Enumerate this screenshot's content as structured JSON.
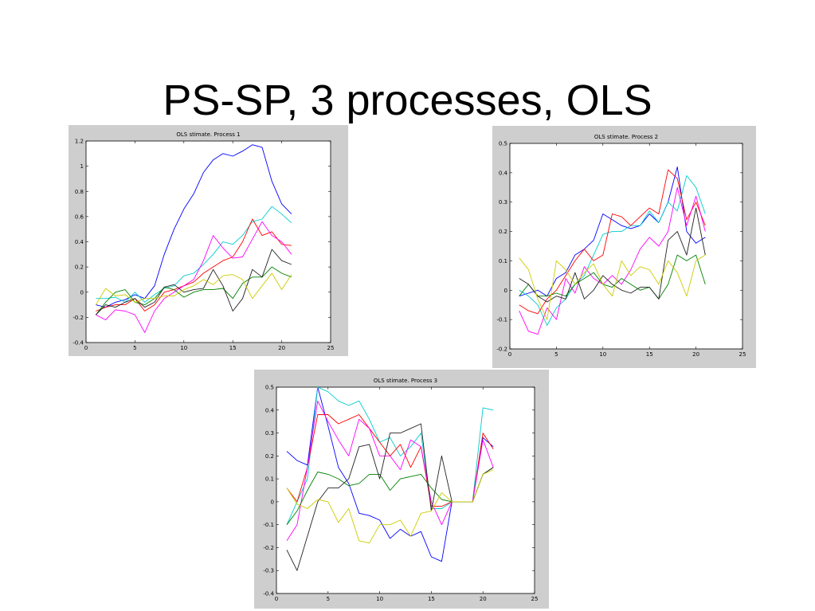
{
  "slide": {
    "title": "PS-SP, 3 processes, OLS"
  },
  "chart_data": [
    {
      "type": "line",
      "title": "OLS stimate. Process 1",
      "xlabel": "",
      "ylabel": "",
      "xlim": [
        0,
        25
      ],
      "ylim": [
        -0.4,
        1.2
      ],
      "xticks": [
        0,
        5,
        10,
        15,
        20,
        25
      ],
      "yticks": [
        -0.4,
        -0.2,
        0,
        0.2,
        0.4,
        0.6,
        0.8,
        1,
        1.2
      ],
      "grid": false,
      "x": [
        1,
        2,
        3,
        4,
        5,
        6,
        7,
        8,
        9,
        10,
        11,
        12,
        13,
        14,
        15,
        16,
        17,
        18,
        19,
        20,
        21
      ],
      "series": [
        {
          "color": "#0000ff",
          "values": [
            -0.1,
            -0.12,
            -0.08,
            -0.06,
            -0.02,
            -0.05,
            0.05,
            0.3,
            0.5,
            0.66,
            0.78,
            0.95,
            1.05,
            1.1,
            1.08,
            1.12,
            1.17,
            1.15,
            0.88,
            0.7,
            0.62
          ]
        },
        {
          "color": "#00cccc",
          "values": [
            -0.05,
            -0.05,
            -0.04,
            -0.08,
            0.0,
            -0.08,
            -0.02,
            0.03,
            0.05,
            0.13,
            0.15,
            0.22,
            0.3,
            0.4,
            0.38,
            0.45,
            0.56,
            0.58,
            0.68,
            0.62,
            0.55
          ]
        },
        {
          "color": "#ff0000",
          "values": [
            -0.15,
            -0.12,
            -0.1,
            -0.1,
            -0.05,
            -0.15,
            -0.1,
            0.0,
            0.02,
            0.05,
            0.08,
            0.15,
            0.2,
            0.25,
            0.28,
            0.4,
            0.58,
            0.45,
            0.48,
            0.38,
            0.37
          ]
        },
        {
          "color": "#ff00ff",
          "values": [
            -0.18,
            -0.22,
            -0.14,
            -0.15,
            -0.18,
            -0.32,
            -0.15,
            -0.05,
            0.0,
            0.05,
            0.1,
            0.25,
            0.45,
            0.35,
            0.27,
            0.28,
            0.42,
            0.56,
            0.45,
            0.4,
            0.3
          ]
        },
        {
          "color": "#008000",
          "values": [
            -0.18,
            -0.08,
            0.0,
            0.02,
            -0.08,
            -0.1,
            -0.05,
            0.04,
            0.02,
            -0.04,
            0.0,
            0.02,
            0.02,
            0.03,
            -0.05,
            0.07,
            0.12,
            0.12,
            0.2,
            0.15,
            0.12
          ]
        },
        {
          "color": "#222222",
          "values": [
            -0.18,
            -0.1,
            -0.12,
            -0.08,
            -0.05,
            -0.12,
            -0.08,
            0.04,
            0.06,
            0.0,
            0.02,
            0.03,
            0.18,
            0.05,
            -0.15,
            -0.05,
            0.18,
            0.12,
            0.34,
            0.25,
            0.22
          ]
        },
        {
          "color": "#cccc00",
          "values": [
            -0.1,
            0.03,
            -0.03,
            -0.02,
            -0.08,
            -0.05,
            -0.05,
            -0.03,
            -0.03,
            0.02,
            0.05,
            0.1,
            0.06,
            0.13,
            0.14,
            0.1,
            -0.05,
            0.05,
            0.15,
            0.02,
            0.14
          ]
        }
      ]
    },
    {
      "type": "line",
      "title": "OLS stimate. Process 2",
      "xlabel": "",
      "ylabel": "",
      "xlim": [
        0,
        25
      ],
      "ylim": [
        -0.2,
        0.5
      ],
      "xticks": [
        0,
        5,
        10,
        15,
        20,
        25
      ],
      "yticks": [
        -0.2,
        -0.1,
        0,
        0.1,
        0.2,
        0.3,
        0.4,
        0.5
      ],
      "grid": false,
      "x": [
        1,
        2,
        3,
        4,
        5,
        6,
        7,
        8,
        9,
        10,
        11,
        12,
        13,
        14,
        15,
        16,
        17,
        18,
        19,
        20,
        21
      ],
      "series": [
        {
          "color": "#0000ff",
          "values": [
            -0.02,
            -0.01,
            0.0,
            -0.02,
            0.04,
            0.06,
            0.12,
            0.14,
            0.17,
            0.26,
            0.24,
            0.22,
            0.21,
            0.22,
            0.26,
            0.23,
            0.3,
            0.42,
            0.2,
            0.16,
            0.18
          ]
        },
        {
          "color": "#00cccc",
          "values": [
            0.0,
            -0.02,
            -0.05,
            -0.12,
            -0.06,
            -0.03,
            0.02,
            0.05,
            0.12,
            0.19,
            0.2,
            0.2,
            0.22,
            0.22,
            0.27,
            0.23,
            0.3,
            0.27,
            0.39,
            0.35,
            0.26
          ]
        },
        {
          "color": "#ff0000",
          "values": [
            -0.05,
            -0.07,
            -0.08,
            -0.03,
            0.0,
            0.05,
            0.1,
            0.14,
            0.1,
            0.12,
            0.26,
            0.25,
            0.22,
            0.25,
            0.28,
            0.26,
            0.41,
            0.38,
            0.24,
            0.3,
            0.22
          ]
        },
        {
          "color": "#ff00ff",
          "values": [
            -0.07,
            -0.14,
            -0.15,
            -0.06,
            -0.1,
            0.04,
            -0.01,
            0.08,
            0.04,
            0.02,
            0.05,
            0.02,
            0.07,
            0.14,
            0.18,
            0.15,
            0.2,
            0.35,
            0.22,
            0.32,
            0.2
          ]
        },
        {
          "color": "#008000",
          "values": [
            -0.02,
            0.02,
            -0.02,
            -0.02,
            -0.01,
            -0.02,
            0.02,
            0.04,
            0.06,
            0.02,
            0.01,
            0.04,
            0.02,
            0.0,
            0.01,
            -0.03,
            0.02,
            0.12,
            0.1,
            0.12,
            0.02
          ]
        },
        {
          "color": "#222222",
          "values": [
            0.04,
            0.02,
            -0.02,
            -0.04,
            -0.02,
            -0.03,
            0.06,
            -0.03,
            0.0,
            0.05,
            0.02,
            0.0,
            -0.01,
            0.01,
            0.01,
            -0.03,
            0.17,
            0.2,
            0.12,
            0.28,
            0.12
          ]
        },
        {
          "color": "#cccc00",
          "values": [
            0.11,
            0.07,
            -0.03,
            -0.1,
            0.1,
            0.07,
            0.02,
            0.06,
            0.09,
            0.02,
            -0.02,
            0.1,
            0.05,
            0.08,
            0.07,
            0.02,
            0.1,
            0.06,
            -0.02,
            0.1,
            0.12
          ]
        }
      ]
    },
    {
      "type": "line",
      "title": "OLS stimate. Process 3",
      "xlabel": "",
      "ylabel": "",
      "xlim": [
        0,
        25
      ],
      "ylim": [
        -0.4,
        0.5
      ],
      "xticks": [
        0,
        5,
        10,
        15,
        20,
        25
      ],
      "yticks": [
        -0.4,
        -0.3,
        -0.2,
        -0.1,
        0,
        0.1,
        0.2,
        0.3,
        0.4,
        0.5
      ],
      "grid": false,
      "x": [
        1,
        2,
        3,
        4,
        5,
        6,
        7,
        8,
        9,
        10,
        11,
        12,
        13,
        14,
        15,
        16,
        17,
        18,
        19,
        20,
        21
      ],
      "series": [
        {
          "color": "#0000ff",
          "values": [
            0.22,
            0.18,
            0.16,
            0.5,
            0.33,
            0.15,
            0.08,
            -0.05,
            -0.06,
            -0.08,
            -0.16,
            -0.12,
            -0.15,
            -0.13,
            -0.24,
            -0.26,
            0.0,
            0.0,
            0.0,
            0.28,
            0.24
          ]
        },
        {
          "color": "#00cccc",
          "values": [
            -0.1,
            0.0,
            0.1,
            0.5,
            0.48,
            0.44,
            0.42,
            0.44,
            0.36,
            0.26,
            0.28,
            0.2,
            0.24,
            0.3,
            -0.03,
            -0.03,
            0.0,
            0.0,
            0.0,
            0.41,
            0.4
          ]
        },
        {
          "color": "#ff0000",
          "values": [
            0.06,
            0.0,
            0.15,
            0.38,
            0.38,
            0.34,
            0.36,
            0.38,
            0.32,
            0.26,
            0.2,
            0.25,
            0.15,
            0.24,
            -0.02,
            -0.02,
            0.0,
            0.0,
            0.0,
            0.3,
            0.23
          ]
        },
        {
          "color": "#ff00ff",
          "values": [
            -0.17,
            -0.1,
            0.15,
            0.44,
            0.35,
            0.27,
            0.2,
            0.36,
            0.32,
            0.2,
            0.2,
            0.14,
            0.27,
            0.24,
            0.0,
            -0.1,
            0.0,
            0.0,
            0.0,
            0.27,
            0.15
          ]
        },
        {
          "color": "#008000",
          "values": [
            -0.1,
            -0.04,
            0.05,
            0.13,
            0.12,
            0.1,
            0.07,
            0.08,
            0.12,
            0.12,
            0.05,
            0.1,
            0.11,
            0.12,
            0.06,
            0.01,
            0.0,
            0.0,
            0.0,
            0.12,
            0.15
          ]
        },
        {
          "color": "#222222",
          "values": [
            -0.21,
            -0.3,
            -0.15,
            0.0,
            0.06,
            0.06,
            0.1,
            0.24,
            0.25,
            0.1,
            0.3,
            0.3,
            0.32,
            0.34,
            -0.04,
            0.2,
            0.0,
            0.0,
            0.0,
            0.12,
            0.15
          ]
        },
        {
          "color": "#cccc00",
          "values": [
            0.06,
            -0.01,
            -0.03,
            0.01,
            0.0,
            -0.09,
            -0.03,
            -0.17,
            -0.18,
            -0.1,
            -0.1,
            -0.08,
            -0.15,
            -0.05,
            -0.04,
            0.04,
            0.0,
            0.0,
            0.0,
            0.12,
            0.14
          ]
        }
      ]
    }
  ]
}
